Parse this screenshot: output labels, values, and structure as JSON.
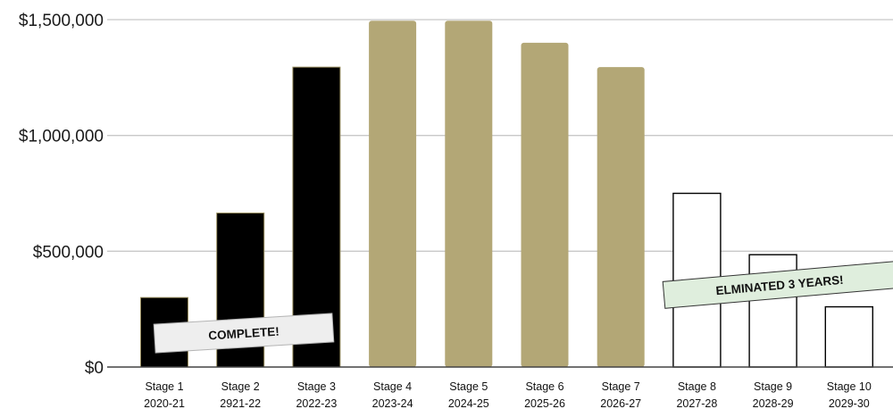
{
  "chart_data": {
    "type": "bar",
    "categories": [
      "Stage 1",
      "Stage 2",
      "Stage 3",
      "Stage 4",
      "Stage 5",
      "Stage 6",
      "Stage 7",
      "Stage 8",
      "Stage 9",
      "Stage 10"
    ],
    "years": [
      "2020-21",
      "2921-22",
      "2022-23",
      "2023-24",
      "2024-25",
      "2025-26",
      "2026-27",
      "2027-28",
      "2028-29",
      "2029-30"
    ],
    "values": [
      300000,
      665000,
      1295000,
      1495000,
      1495000,
      1400000,
      1295000,
      750000,
      485000,
      260000
    ],
    "bar_status": [
      "complete",
      "complete",
      "complete",
      "planned",
      "planned",
      "planned",
      "planned",
      "eliminated",
      "eliminated",
      "eliminated"
    ],
    "ylim": [
      0,
      1500000
    ],
    "yticks": [
      {
        "value": 0,
        "label": "$0"
      },
      {
        "value": 500000,
        "label": "$500,000"
      },
      {
        "value": 1000000,
        "label": "$1,000,000"
      },
      {
        "value": 1500000,
        "label": "$1,500,000"
      }
    ],
    "grid": true,
    "annotations": [
      {
        "text": "COMPLETE!",
        "background": "#eeeeee"
      },
      {
        "text": "ELMINATED 3 YEARS!",
        "background": "#dfeedd"
      }
    ],
    "colors": {
      "complete": "#000000",
      "planned": "#b3a776",
      "eliminated": "#ffffff",
      "gridline": "#c8c8c8"
    }
  }
}
